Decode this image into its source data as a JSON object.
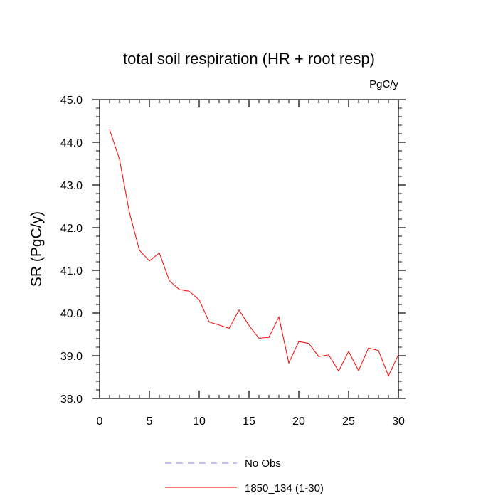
{
  "chart_data": {
    "type": "line",
    "title": "total soil respiration (HR + root resp)",
    "units_label": "PgC/y",
    "ylabel": "SR  (PgC/y)",
    "xlabel": "",
    "xlim": [
      0,
      30
    ],
    "ylim": [
      38.0,
      45.0
    ],
    "x_ticks": [
      0,
      5,
      10,
      15,
      20,
      25,
      30
    ],
    "x_tick_labels": [
      "0",
      "5",
      "10",
      "15",
      "20",
      "25",
      "30"
    ],
    "y_ticks": [
      38.0,
      39.0,
      40.0,
      41.0,
      42.0,
      43.0,
      44.0,
      45.0
    ],
    "y_tick_labels": [
      "38.0",
      "39.0",
      "40.0",
      "41.0",
      "42.0",
      "43.0",
      "44.0",
      "45.0"
    ],
    "grid": false,
    "legend_position": "bottom",
    "series": [
      {
        "name": "1850_134 (1-30)",
        "color": "#ff0000",
        "style": "solid",
        "x": [
          1,
          2,
          3,
          4,
          5,
          6,
          7,
          8,
          9,
          10,
          11,
          12,
          13,
          14,
          15,
          16,
          17,
          18,
          19,
          20,
          21,
          22,
          23,
          24,
          25,
          26,
          27,
          28,
          29,
          30
        ],
        "y": [
          44.3,
          43.6,
          42.35,
          41.47,
          41.22,
          41.41,
          40.76,
          40.55,
          40.51,
          40.31,
          39.79,
          39.72,
          39.64,
          40.07,
          39.71,
          39.41,
          39.43,
          39.91,
          38.83,
          39.33,
          39.29,
          38.98,
          39.02,
          38.64,
          39.1,
          38.65,
          39.18,
          39.12,
          38.53,
          39.02
        ]
      }
    ],
    "legend": [
      {
        "label": "No Obs",
        "color": "#8080ff",
        "style": "dashed"
      },
      {
        "label": "1850_134 (1-30)",
        "color": "#ff0000",
        "style": "solid"
      }
    ]
  }
}
